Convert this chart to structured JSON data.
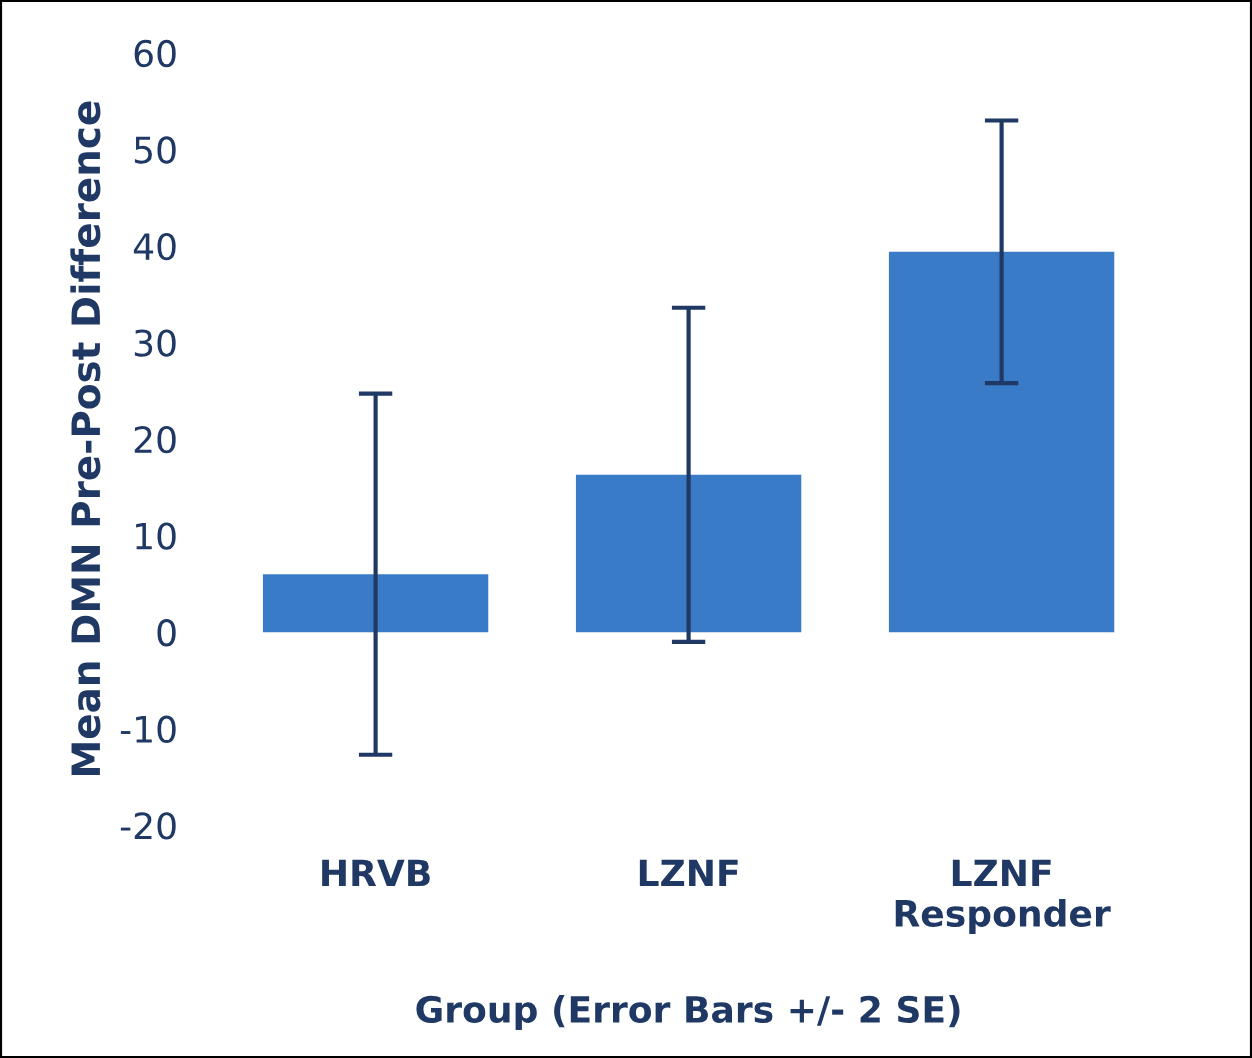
{
  "chart_data": {
    "type": "bar",
    "xlabel": "Group (Error Bars +/- 2 SE)",
    "ylabel": "Mean DMN Pre-Post Difference",
    "categories": [
      "HRVB",
      "LZNF",
      "LZNF\nResponder"
    ],
    "values": [
      6.0,
      16.3,
      39.4
    ],
    "errors": [
      18.7,
      17.3,
      13.6
    ],
    "color": "#3a7bc8",
    "ylim": [
      -20,
      60
    ],
    "yticks": [
      -20,
      -10,
      0,
      10,
      20,
      30,
      40,
      50,
      60
    ],
    "grid": false
  }
}
